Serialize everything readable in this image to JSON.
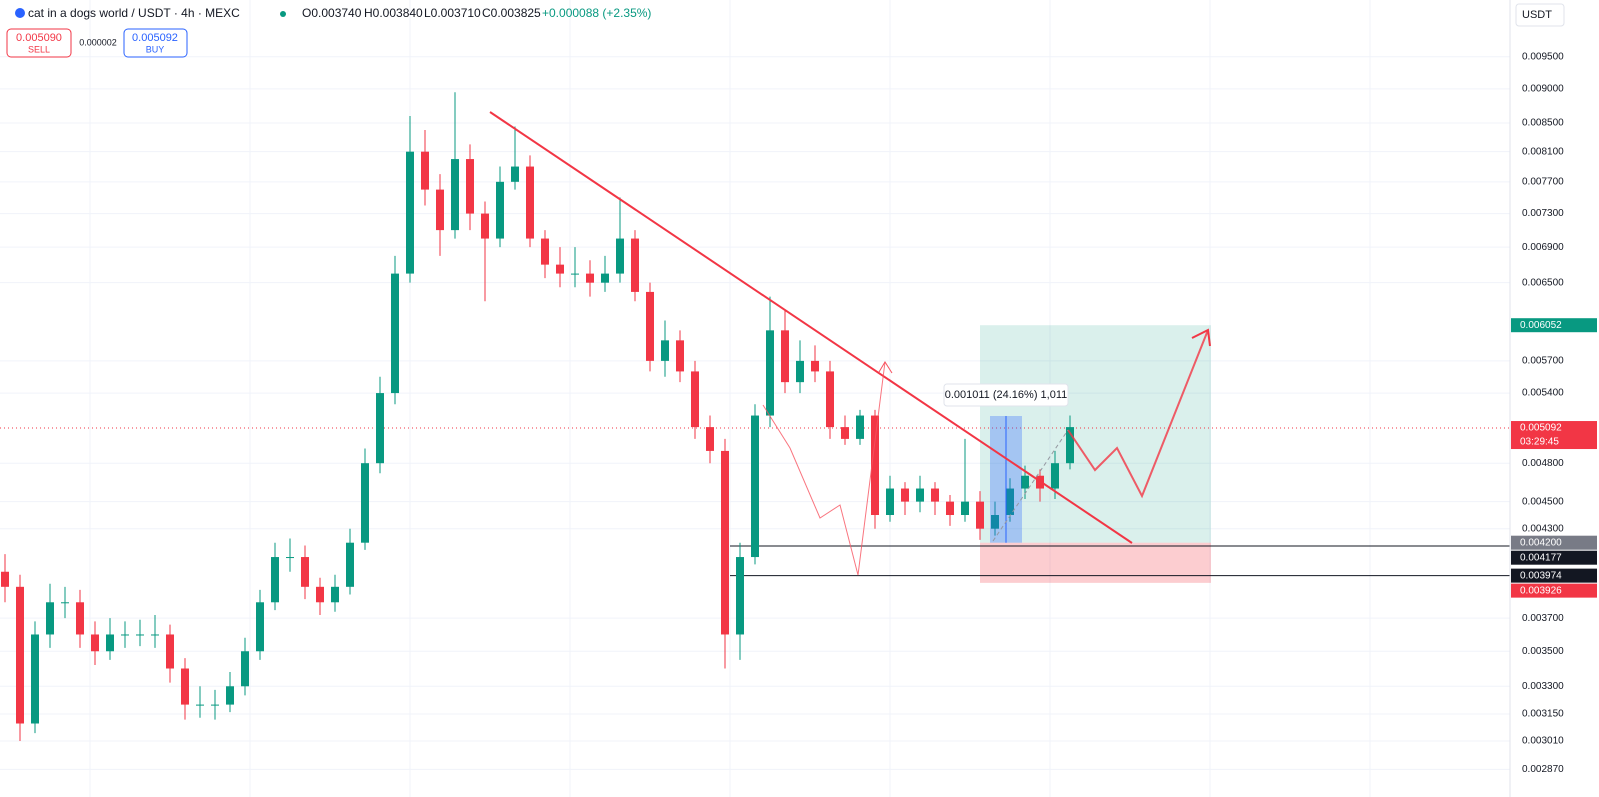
{
  "header": {
    "symbol": "cat in a dogs world / USDT · 4h · MEXC",
    "open": "O0.003740",
    "high": "H0.003840",
    "low": "L0.003710",
    "close": "C0.003825",
    "change": "+0.000088 (+2.35%)"
  },
  "order": {
    "sell_price": "0.005090",
    "sell": "SELL",
    "spread": "0.000002",
    "buy_price": "0.005092",
    "buy": "BUY"
  },
  "currency": "USDT",
  "measure_label": "0.001011 (24.16%) 1,011",
  "chart_data": {
    "type": "candlestick",
    "log_scale": true,
    "up_color": "#089981",
    "down_color": "#f23645",
    "ylim": [
      0.00274,
      0.01045
    ],
    "yticks": [
      {
        "value": 0.0095,
        "label": "0.009500"
      },
      {
        "value": 0.009,
        "label": "0.009000"
      },
      {
        "value": 0.0085,
        "label": "0.008500"
      },
      {
        "value": 0.0081,
        "label": "0.008100"
      },
      {
        "value": 0.0077,
        "label": "0.007700"
      },
      {
        "value": 0.0073,
        "label": "0.007300"
      },
      {
        "value": 0.0069,
        "label": "0.006900"
      },
      {
        "value": 0.0065,
        "label": "0.006500"
      },
      {
        "value": 0.0057,
        "label": "0.005700"
      },
      {
        "value": 0.0054,
        "label": "0.005400"
      },
      {
        "value": 0.0048,
        "label": "0.004800"
      },
      {
        "value": 0.0045,
        "label": "0.004500"
      },
      {
        "value": 0.0043,
        "label": "0.004300"
      },
      {
        "value": 0.0037,
        "label": "0.003700"
      },
      {
        "value": 0.0035,
        "label": "0.003500"
      },
      {
        "value": 0.0033,
        "label": "0.003300"
      },
      {
        "value": 0.00315,
        "label": "0.003150"
      },
      {
        "value": 0.00301,
        "label": "0.003010"
      },
      {
        "value": 0.00287,
        "label": "0.002870"
      }
    ],
    "open": [
      0.004,
      0.0039,
      0.0031,
      0.0036,
      0.0038,
      0.0038,
      0.0036,
      0.0035,
      0.0036,
      0.0036,
      0.0036,
      0.0036,
      0.0034,
      0.0032,
      0.0032,
      0.0032,
      0.0033,
      0.0035,
      0.0038,
      0.0041,
      0.0041,
      0.0039,
      0.0038,
      0.0039,
      0.0042,
      0.0048,
      0.0054,
      0.0066,
      0.0081,
      0.0076,
      0.0071,
      0.008,
      0.0073,
      0.007,
      0.0077,
      0.0079,
      0.007,
      0.0067,
      0.0066,
      0.0066,
      0.0065,
      0.0066,
      0.007,
      0.0064,
      0.0057,
      0.0059,
      0.0056,
      0.0051,
      0.0049,
      0.0036,
      0.0041,
      0.0052,
      0.006,
      0.0055,
      0.0057,
      0.0056,
      0.0051,
      0.005,
      0.0052,
      0.0044,
      0.0046,
      0.0045,
      0.0046,
      0.0045,
      0.0044,
      0.0045,
      0.0043,
      0.0044,
      0.0046,
      0.0047,
      0.0046,
      0.0048
    ],
    "high": [
      0.00412,
      0.00398,
      0.00368,
      0.00392,
      0.0039,
      0.00388,
      0.00368,
      0.0037,
      0.00368,
      0.00369,
      0.00372,
      0.00366,
      0.00346,
      0.0033,
      0.00328,
      0.00338,
      0.00358,
      0.00388,
      0.0042,
      0.00423,
      0.00418,
      0.00396,
      0.00398,
      0.0043,
      0.00492,
      0.00555,
      0.0068,
      0.0086,
      0.0084,
      0.0078,
      0.00895,
      0.0082,
      0.00745,
      0.0079,
      0.00845,
      0.00805,
      0.0071,
      0.0069,
      0.0069,
      0.00675,
      0.0068,
      0.0075,
      0.0071,
      0.0065,
      0.0061,
      0.006,
      0.0057,
      0.0052,
      0.005,
      0.0042,
      0.0053,
      0.00635,
      0.0062,
      0.0059,
      0.00585,
      0.0057,
      0.0052,
      0.00525,
      0.00525,
      0.0047,
      0.00465,
      0.0047,
      0.00465,
      0.00455,
      0.005,
      0.00458,
      0.0045,
      0.00468,
      0.00478,
      0.00475,
      0.0049,
      0.0052
    ],
    "low": [
      0.0038,
      0.00301,
      0.00305,
      0.00352,
      0.0037,
      0.00352,
      0.00342,
      0.00345,
      0.00352,
      0.00353,
      0.00352,
      0.00332,
      0.00312,
      0.00313,
      0.00312,
      0.00316,
      0.00325,
      0.00345,
      0.00375,
      0.004,
      0.00382,
      0.00372,
      0.00374,
      0.00385,
      0.00415,
      0.00472,
      0.0053,
      0.0065,
      0.0074,
      0.0068,
      0.007,
      0.0071,
      0.0063,
      0.0069,
      0.0076,
      0.0069,
      0.00655,
      0.00645,
      0.00645,
      0.00635,
      0.0064,
      0.0065,
      0.0063,
      0.0056,
      0.00555,
      0.0055,
      0.005,
      0.0048,
      0.0034,
      0.00345,
      0.00405,
      0.0051,
      0.0054,
      0.0054,
      0.0055,
      0.005,
      0.00495,
      0.00495,
      0.0043,
      0.00435,
      0.0044,
      0.00442,
      0.0044,
      0.00432,
      0.00435,
      0.00422,
      0.00425,
      0.00435,
      0.00452,
      0.0045,
      0.00452,
      0.00475
    ],
    "close": [
      0.0039,
      0.0031,
      0.0036,
      0.0038,
      0.0038,
      0.0036,
      0.0035,
      0.0036,
      0.0036,
      0.0036,
      0.0036,
      0.0034,
      0.0032,
      0.0032,
      0.0032,
      0.0033,
      0.0035,
      0.0038,
      0.0041,
      0.0041,
      0.0039,
      0.0038,
      0.0039,
      0.0042,
      0.0048,
      0.0054,
      0.0066,
      0.0081,
      0.0076,
      0.0071,
      0.008,
      0.0073,
      0.007,
      0.0077,
      0.0079,
      0.007,
      0.0067,
      0.0066,
      0.0066,
      0.0065,
      0.0066,
      0.007,
      0.0064,
      0.0057,
      0.0059,
      0.0056,
      0.0051,
      0.0049,
      0.0036,
      0.0041,
      0.0052,
      0.006,
      0.0055,
      0.0057,
      0.0056,
      0.0051,
      0.005,
      0.0052,
      0.0044,
      0.0046,
      0.0045,
      0.0046,
      0.0045,
      0.0044,
      0.0045,
      0.0043,
      0.0044,
      0.0046,
      0.0047,
      0.0046,
      0.0048,
      0.0051
    ],
    "markers": [
      {
        "value": 0.006052,
        "label": "0.006052",
        "color": "#089981"
      },
      {
        "value": 0.005092,
        "label": "0.005092",
        "color": "#f23645",
        "countdown": "03:29:45"
      },
      {
        "value": 0.0042,
        "label": "0.004200",
        "color": "#787b86"
      },
      {
        "value": 0.004177,
        "label": "0.004177",
        "color": "#131722"
      },
      {
        "value": 0.003974,
        "label": "0.003974",
        "color": "#131722"
      },
      {
        "value": 0.003926,
        "label": "0.003926",
        "color": "#f23645"
      }
    ]
  }
}
